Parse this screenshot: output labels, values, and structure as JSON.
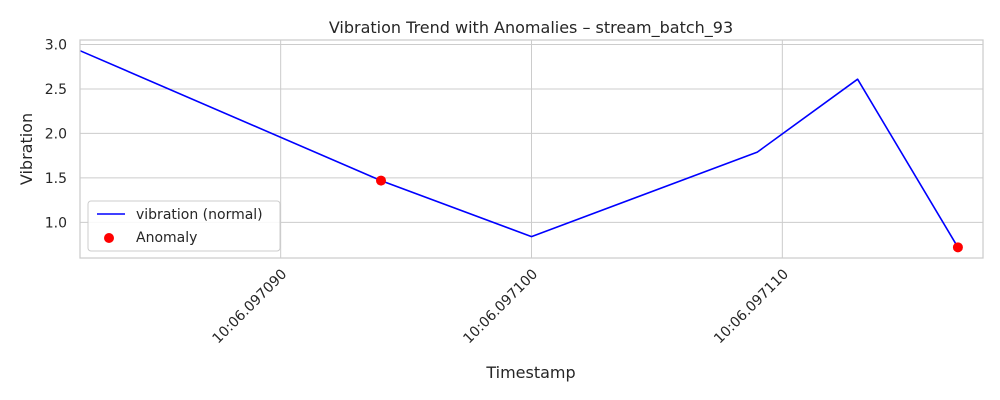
{
  "chart_data": {
    "type": "line",
    "title": "Vibration Trend with Anomalies – stream_batch_93",
    "xlabel": "Timestamp",
    "ylabel": "Vibration",
    "x": [
      "10:06.097082",
      "10:06.097094",
      "10:06.097100",
      "10:06.097109",
      "10:06.097113",
      "10:06.097117"
    ],
    "series": [
      {
        "name": "vibration (normal)",
        "kind": "line",
        "color": "#0000ff",
        "values": [
          2.93,
          1.47,
          0.84,
          1.79,
          2.61,
          0.72
        ]
      },
      {
        "name": "Anomaly",
        "kind": "scatter",
        "color": "#ff0000",
        "points": [
          {
            "x": "10:06.097094",
            "y": 1.47
          },
          {
            "x": "10:06.097117",
            "y": 0.72
          }
        ]
      }
    ],
    "xticks": [
      "10:06.097090",
      "10:06.097100",
      "10:06.097110"
    ],
    "yticks": [
      1.0,
      1.5,
      2.0,
      2.5,
      3.0
    ],
    "ylim": [
      0.6,
      3.05
    ],
    "xlim": [
      "10:06.097082",
      "10:06.097118"
    ],
    "grid": true,
    "legend_position": "lower-left"
  }
}
